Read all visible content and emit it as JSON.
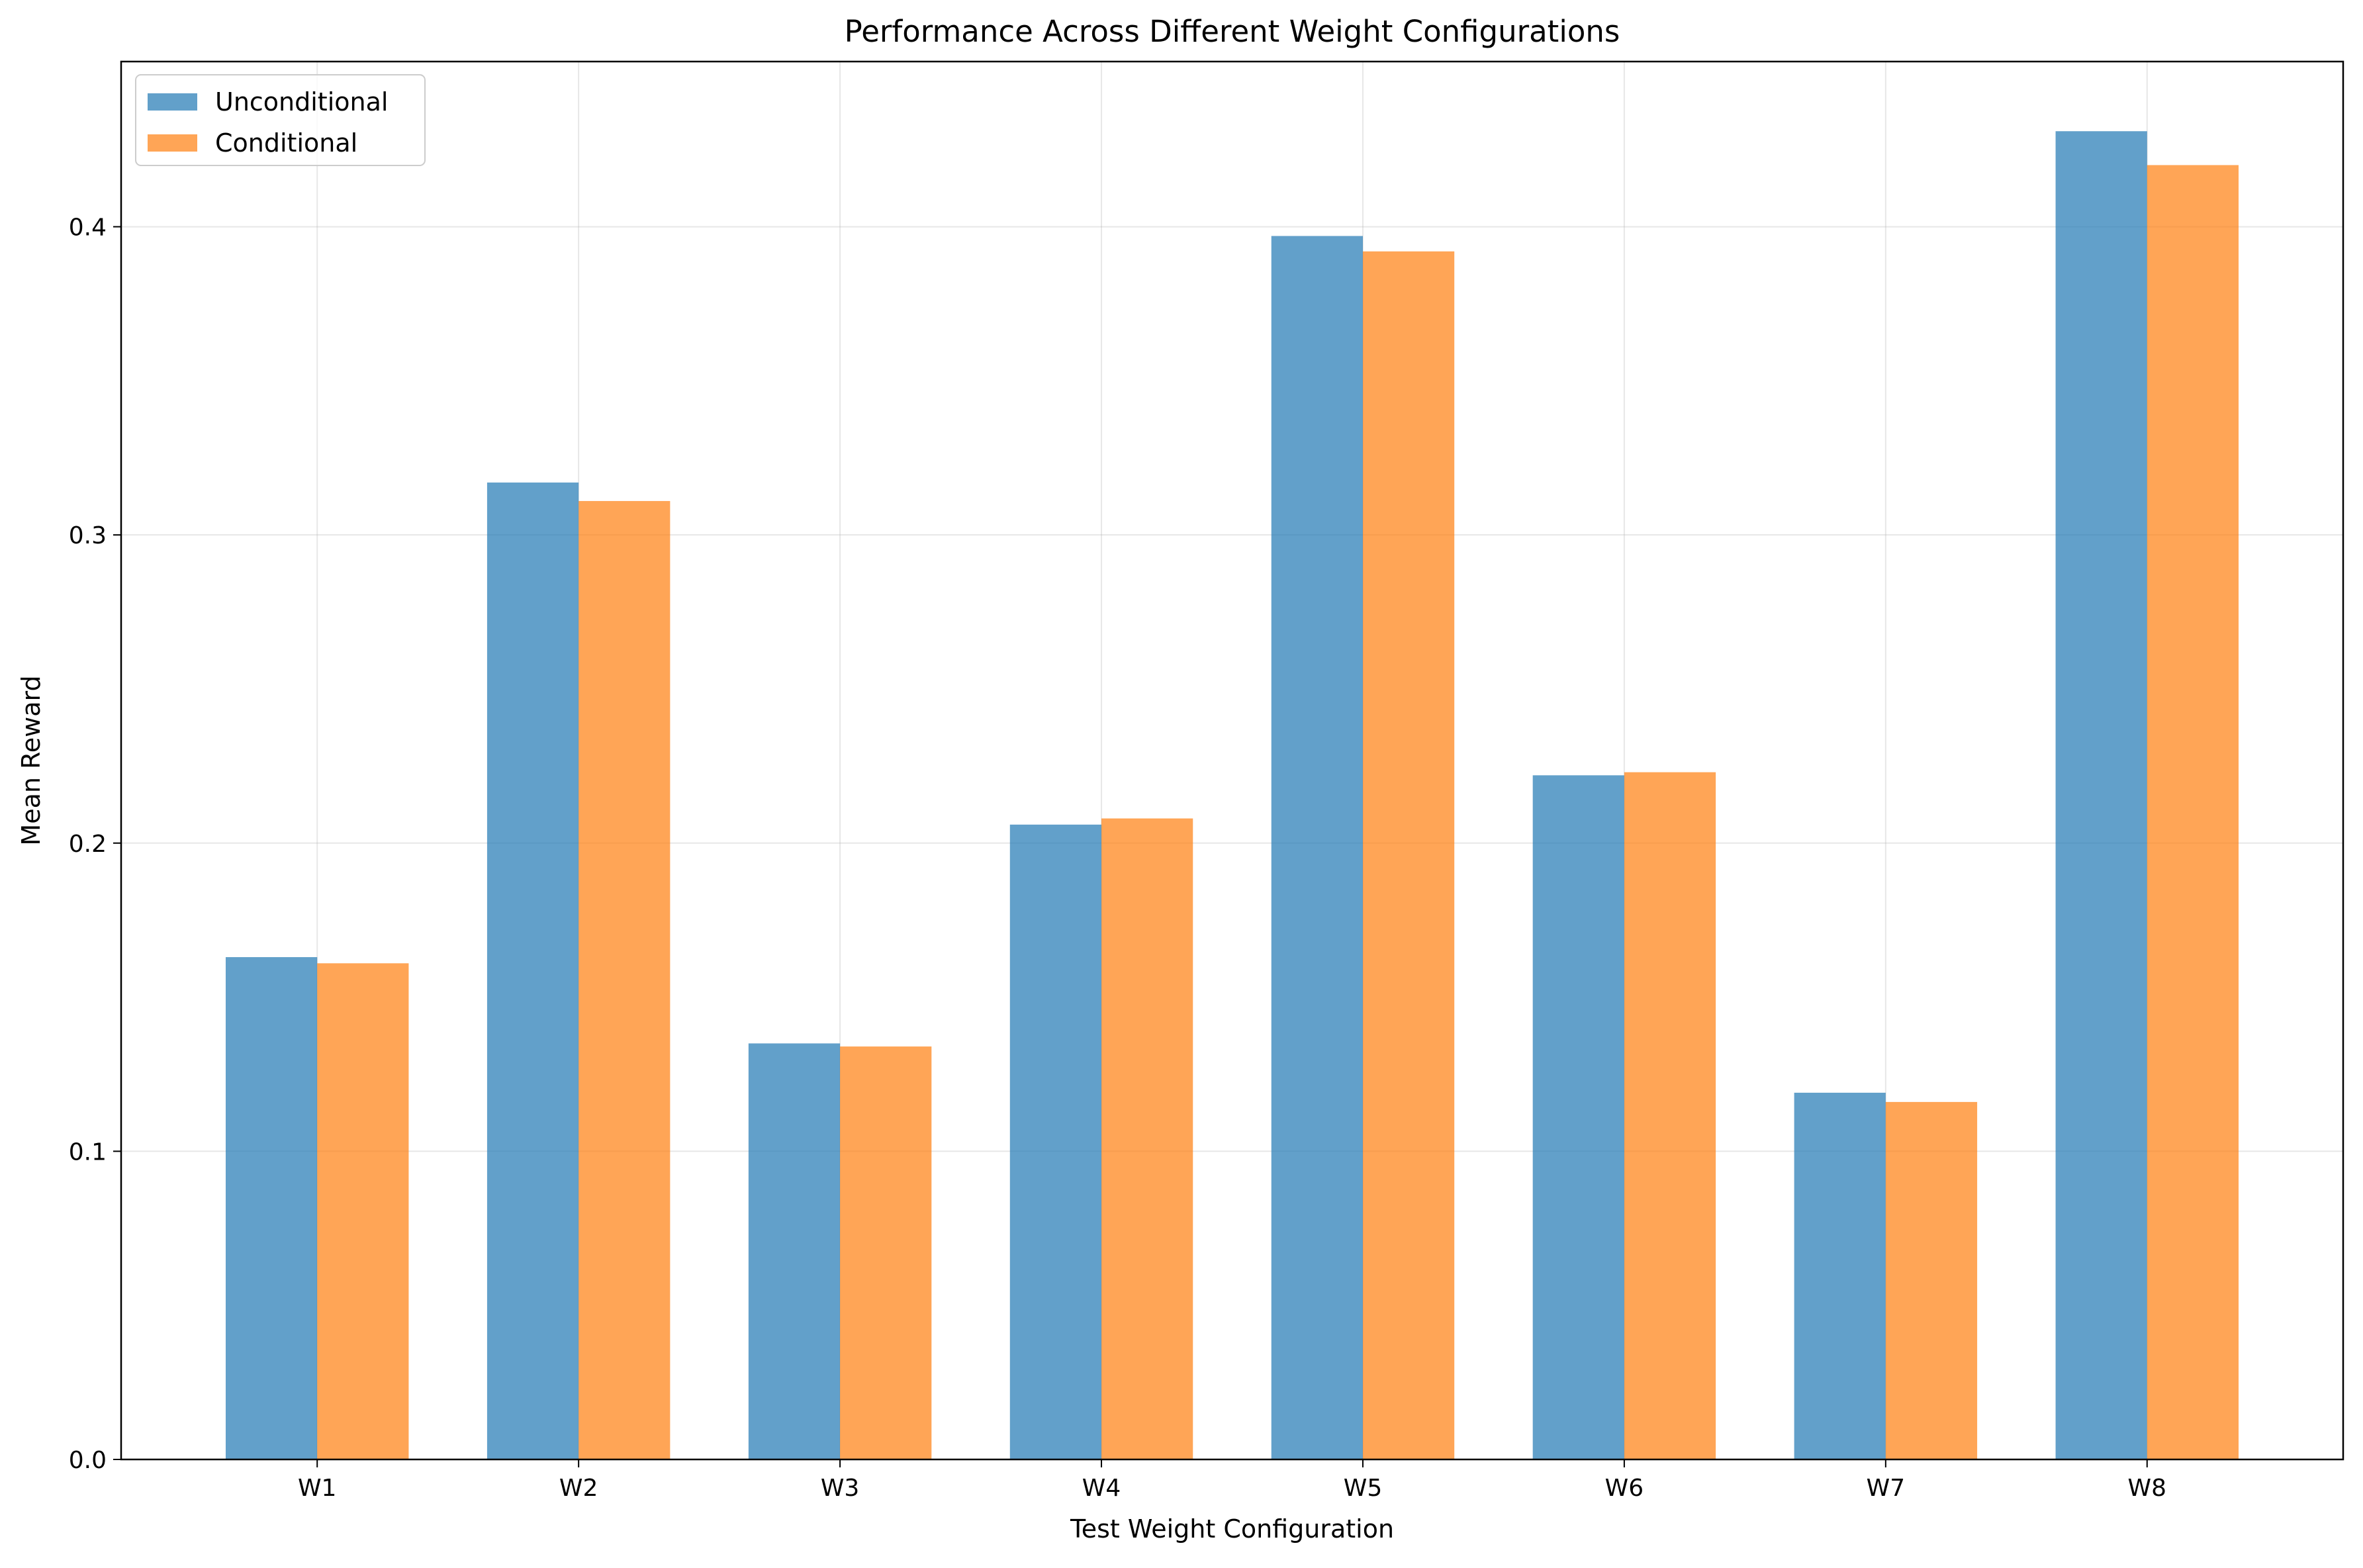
{
  "chart_data": {
    "type": "bar",
    "title": "Performance Across Different Weight Configurations",
    "xlabel": "Test Weight Configuration",
    "ylabel": "Mean Reward",
    "categories": [
      "W1",
      "W2",
      "W3",
      "W4",
      "W5",
      "W6",
      "W7",
      "W8"
    ],
    "series": [
      {
        "name": "Unconditional",
        "color": "#1f77b4",
        "values": [
          0.163,
          0.317,
          0.135,
          0.206,
          0.397,
          0.222,
          0.119,
          0.431
        ]
      },
      {
        "name": "Conditional",
        "color": "#ff7f0e",
        "values": [
          0.161,
          0.311,
          0.134,
          0.208,
          0.392,
          0.223,
          0.116,
          0.42
        ]
      }
    ],
    "bar_opacity": 0.7,
    "ylim": [
      0,
      0.4536
    ],
    "yticks": [
      0.0,
      0.1,
      0.2,
      0.3,
      0.4
    ],
    "ytick_labels": [
      "0.0",
      "0.1",
      "0.2",
      "0.3",
      "0.4"
    ],
    "grid": true,
    "legend_position": "top-left"
  }
}
